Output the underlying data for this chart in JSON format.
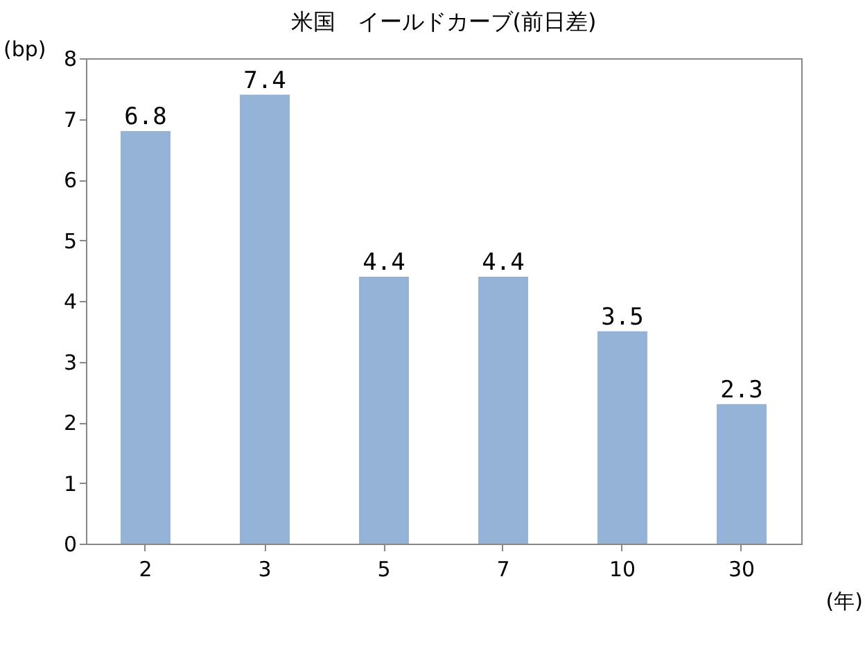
{
  "chart_data": {
    "type": "bar",
    "title": "米国　イールドカーブ(前日差)",
    "ylabel": "(bp)",
    "xlabel": "(年)",
    "categories": [
      "2",
      "3",
      "5",
      "7",
      "10",
      "30"
    ],
    "values": [
      6.8,
      7.4,
      4.4,
      4.4,
      3.5,
      2.3
    ],
    "color": "#95b3d7",
    "ylim": [
      0,
      8
    ],
    "yticks": [
      0,
      1,
      2,
      3,
      4,
      5,
      6,
      7,
      8
    ],
    "grid": false,
    "data_labels": true
  }
}
